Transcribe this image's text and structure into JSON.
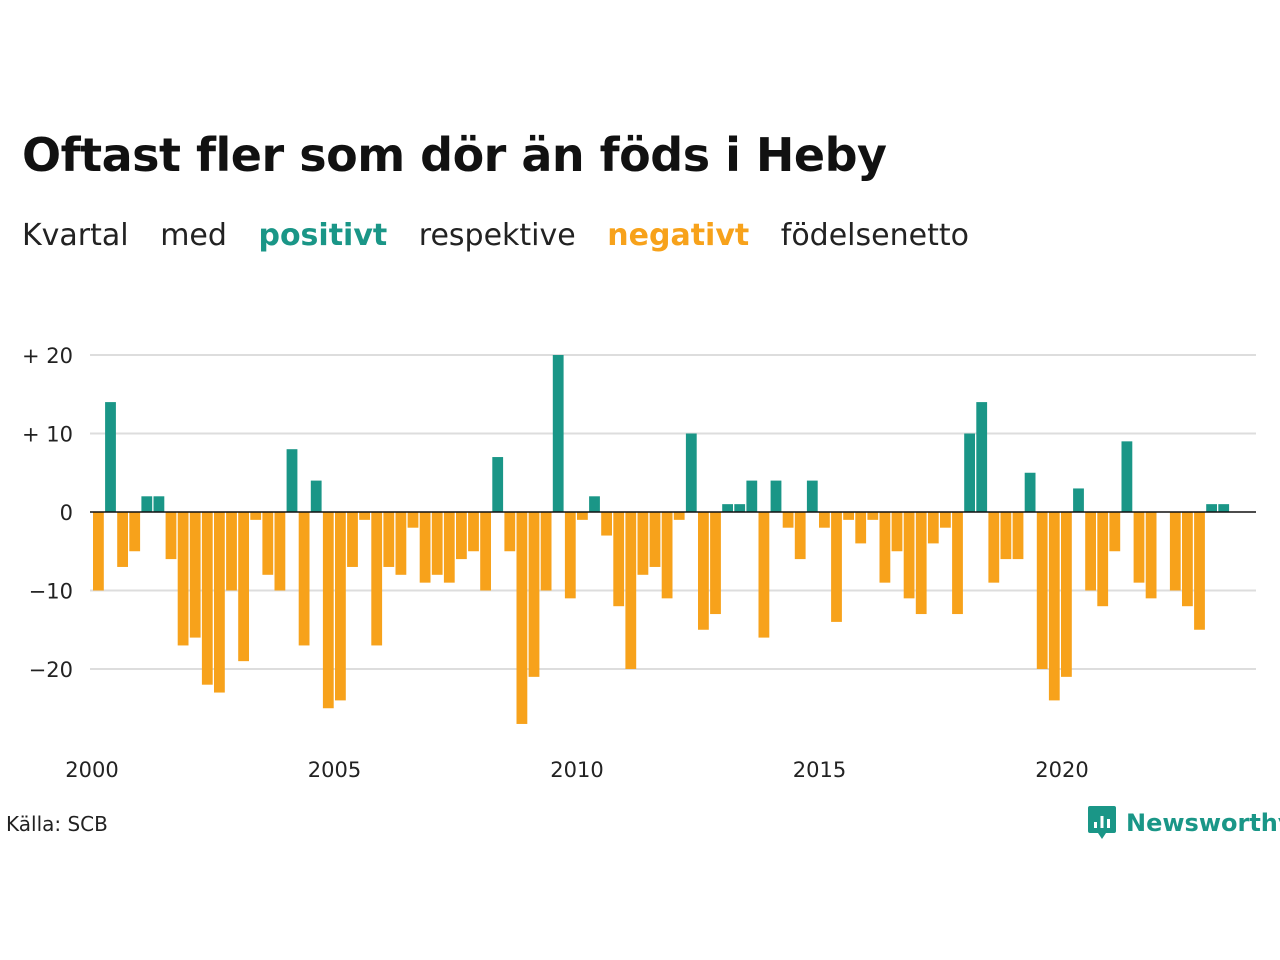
{
  "title": "Oftast fler som dör än föds i Heby",
  "subtitle": {
    "part1": "Kvartal",
    "part2": "med",
    "positive_word": "positivt",
    "part3": "respektive",
    "negative_word": "negativt",
    "part4": "födelsenetto"
  },
  "source": "Källa: SCB",
  "brand": {
    "name": "Newsworthy",
    "icon": "newsworthy-logo-icon"
  },
  "colors": {
    "positive": "#1a9687",
    "negative": "#f7a21b",
    "grid": "#dddddd",
    "text": "#111111"
  },
  "chart_data": {
    "type": "bar",
    "title": "Oftast fler som dör än föds i Heby",
    "xlabel": "",
    "ylabel": "",
    "start_year": 2000,
    "period": "quarter",
    "xlim": [
      2000,
      2024
    ],
    "ylim": [
      -28,
      22
    ],
    "y_ticks": [
      20,
      10,
      0,
      -10,
      -20
    ],
    "y_tick_labels": [
      "+ 20",
      "+ 10",
      "0",
      "−10",
      "−20"
    ],
    "x_ticks": [
      2000,
      2005,
      2010,
      2015,
      2020
    ],
    "x_tick_labels": [
      "2000",
      "2005",
      "2010",
      "2015",
      "2020"
    ],
    "grid": true,
    "values": [
      -10,
      14,
      -7,
      -5,
      2,
      2,
      -6,
      -17,
      -16,
      -22,
      -23,
      -10,
      -19,
      -1,
      -8,
      -10,
      8,
      -17,
      4,
      -25,
      -24,
      -7,
      -1,
      -17,
      -7,
      -8,
      -2,
      -9,
      -8,
      -9,
      -6,
      -5,
      -10,
      7,
      -5,
      -27,
      -21,
      -10,
      20,
      -11,
      -1,
      2,
      -3,
      -12,
      -20,
      -8,
      -7,
      -11,
      -1,
      10,
      -15,
      -13,
      1,
      1,
      4,
      -16,
      4,
      -2,
      -6,
      4,
      -2,
      -14,
      -1,
      -4,
      -1,
      -9,
      -5,
      -11,
      -13,
      -4,
      -2,
      -13,
      10,
      14,
      -9,
      -6,
      -6,
      5,
      -20,
      -24,
      -21,
      3,
      -10,
      -12,
      -5,
      9,
      -9,
      -11,
      0,
      -10,
      -12,
      -15,
      1,
      1
    ]
  }
}
